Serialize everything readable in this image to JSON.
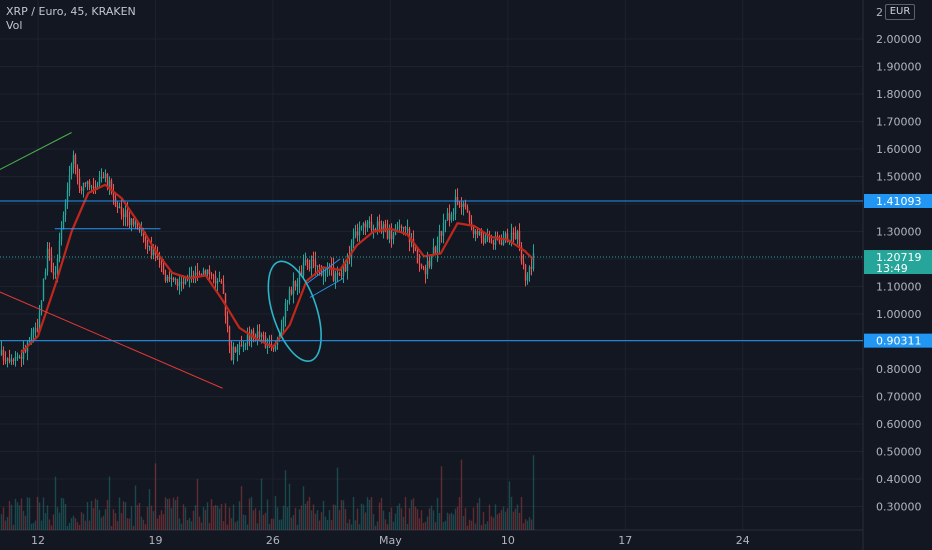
{
  "legend": {
    "symbol_line": "XRP / Euro, 45, KRAKEN",
    "indicator": "Vol"
  },
  "currency_badge": "EUR",
  "colors": {
    "background": "#131722",
    "grid": "#1e222d",
    "up": "#26a69a",
    "down": "#ef5350",
    "ma": "#c1271b",
    "resistance_trend": "#4caf50",
    "support_trend": "#e53935",
    "hline": "#2196f3",
    "annotation": "#2bb5c8",
    "current_price": "#26a69a"
  },
  "chart_data": {
    "type": "candlestick",
    "title": "XRP / Euro, 45, KRAKEN",
    "yaxis": {
      "ticks": [
        "0.30000",
        "0.40000",
        "0.50000",
        "0.60000",
        "0.70000",
        "0.80000",
        "0.90000",
        "1.00000",
        "1.10000",
        "1.20000",
        "1.30000",
        "1.40000",
        "1.50000",
        "1.60000",
        "1.70000",
        "1.80000",
        "1.90000",
        "2.00000"
      ],
      "top_label": "2",
      "range": [
        0.22,
        2.05
      ]
    },
    "xaxis": {
      "ticks": [
        "12",
        "19",
        "26",
        "May",
        "10",
        "17",
        "24"
      ]
    },
    "horizontal_lines": [
      {
        "value": 1.41093,
        "label": "1.41093"
      },
      {
        "value": 0.90311,
        "label": "0.90311"
      }
    ],
    "current_price": {
      "value": 1.20719,
      "label": "1.20719",
      "countdown": "13:49"
    },
    "trendlines": [
      {
        "name": "upper",
        "from": {
          "date": "Apr 14",
          "y": 1.66
        },
        "to": {
          "date": "Jun 1",
          "y": 1.25
        }
      },
      {
        "name": "lower",
        "from": {
          "date": "Apr 23",
          "y": 0.73
        },
        "to": {
          "date": "Jun 1",
          "y": 1.31
        }
      }
    ],
    "price_path": [
      {
        "date": "Apr 11",
        "y": 0.85
      },
      {
        "date": "Apr 12",
        "y": 0.96
      },
      {
        "date": "Apr 12.5",
        "y": 1.22
      },
      {
        "date": "Apr 13",
        "y": 1.14
      },
      {
        "date": "Apr 13.5",
        "y": 1.35
      },
      {
        "date": "Apr 14",
        "y": 1.58
      },
      {
        "date": "Apr 14.5",
        "y": 1.45
      },
      {
        "date": "Apr 15",
        "y": 1.46
      },
      {
        "date": "Apr 16",
        "y": 1.5
      },
      {
        "date": "Apr 17",
        "y": 1.36
      },
      {
        "date": "Apr 18",
        "y": 1.33
      },
      {
        "date": "Apr 18.5",
        "y": 1.25
      },
      {
        "date": "Apr 19",
        "y": 1.2
      },
      {
        "date": "Apr 20",
        "y": 1.1
      },
      {
        "date": "Apr 21",
        "y": 1.12
      },
      {
        "date": "Apr 22",
        "y": 1.17
      },
      {
        "date": "Apr 23",
        "y": 1.08
      },
      {
        "date": "Apr 23.5",
        "y": 0.85
      },
      {
        "date": "Apr 24",
        "y": 0.9
      },
      {
        "date": "Apr 25",
        "y": 0.93
      },
      {
        "date": "Apr 26",
        "y": 0.86
      },
      {
        "date": "Apr 27",
        "y": 1.08
      },
      {
        "date": "Apr 28",
        "y": 1.19
      },
      {
        "date": "Apr 29",
        "y": 1.16
      },
      {
        "date": "Apr 30",
        "y": 1.13
      },
      {
        "date": "May 1",
        "y": 1.3
      },
      {
        "date": "May 2",
        "y": 1.33
      },
      {
        "date": "May 3",
        "y": 1.29
      },
      {
        "date": "May 4",
        "y": 1.3
      },
      {
        "date": "May 5",
        "y": 1.14
      },
      {
        "date": "May 6",
        "y": 1.3
      },
      {
        "date": "May 7",
        "y": 1.42
      },
      {
        "date": "May 8",
        "y": 1.3
      },
      {
        "date": "May 9",
        "y": 1.26
      },
      {
        "date": "May 10",
        "y": 1.28
      },
      {
        "date": "May 10.5",
        "y": 1.3
      },
      {
        "date": "May 11",
        "y": 1.12
      },
      {
        "date": "May 11.5",
        "y": 1.21
      }
    ],
    "ma_path": [
      {
        "date": "Apr 11",
        "y": 0.86
      },
      {
        "date": "Apr 12",
        "y": 0.92
      },
      {
        "date": "Apr 13",
        "y": 1.1
      },
      {
        "date": "Apr 14",
        "y": 1.3
      },
      {
        "date": "Apr 15",
        "y": 1.44
      },
      {
        "date": "Apr 16",
        "y": 1.47
      },
      {
        "date": "Apr 17",
        "y": 1.42
      },
      {
        "date": "Apr 18",
        "y": 1.33
      },
      {
        "date": "Apr 19",
        "y": 1.23
      },
      {
        "date": "Apr 20",
        "y": 1.15
      },
      {
        "date": "Apr 21",
        "y": 1.13
      },
      {
        "date": "Apr 22",
        "y": 1.14
      },
      {
        "date": "Apr 23",
        "y": 1.05
      },
      {
        "date": "Apr 24",
        "y": 0.95
      },
      {
        "date": "Apr 25",
        "y": 0.91
      },
      {
        "date": "Apr 26",
        "y": 0.88
      },
      {
        "date": "Apr 27",
        "y": 0.96
      },
      {
        "date": "Apr 28",
        "y": 1.12
      },
      {
        "date": "Apr 29",
        "y": 1.17
      },
      {
        "date": "Apr 30",
        "y": 1.16
      },
      {
        "date": "May 1",
        "y": 1.25
      },
      {
        "date": "May 2",
        "y": 1.3
      },
      {
        "date": "May 3",
        "y": 1.31
      },
      {
        "date": "May 4",
        "y": 1.29
      },
      {
        "date": "May 5",
        "y": 1.21
      },
      {
        "date": "May 6",
        "y": 1.22
      },
      {
        "date": "May 7",
        "y": 1.33
      },
      {
        "date": "May 8",
        "y": 1.32
      },
      {
        "date": "May 9",
        "y": 1.28
      },
      {
        "date": "May 10",
        "y": 1.27
      },
      {
        "date": "May 11",
        "y": 1.23
      },
      {
        "date": "May 11.5",
        "y": 1.2
      }
    ]
  }
}
